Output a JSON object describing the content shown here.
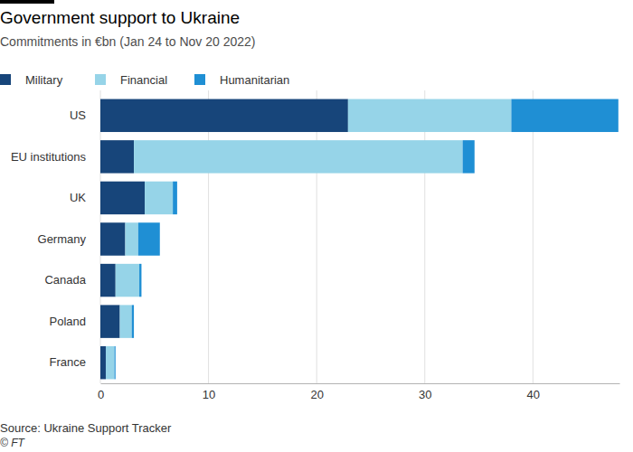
{
  "chart_data": {
    "type": "bar",
    "title": "Government support to Ukraine",
    "subtitle": "Commitments in €bn (Jan 24 to Nov 20 2022)",
    "source": "Source: Ukraine Support Tracker",
    "credit": "© FT",
    "orientation": "horizontal",
    "stacked": true,
    "grid": true,
    "legend": "top-left",
    "categories": [
      "US",
      "EU institutions",
      "UK",
      "Germany",
      "Canada",
      "Poland",
      "France"
    ],
    "series": [
      {
        "name": "Military",
        "color": "#17457a",
        "values": [
          22.9,
          3.1,
          4.1,
          2.3,
          1.4,
          1.8,
          0.5
        ]
      },
      {
        "name": "Financial",
        "color": "#96d4e8",
        "values": [
          15.1,
          30.4,
          2.6,
          1.2,
          2.2,
          1.1,
          0.8
        ]
      },
      {
        "name": "Humanitarian",
        "color": "#1f8fd4",
        "values": [
          9.9,
          1.1,
          0.4,
          2.0,
          0.2,
          0.2,
          0.1
        ]
      }
    ],
    "xlim": [
      0,
      48
    ],
    "xticks": [
      0,
      10,
      20,
      30,
      40
    ]
  }
}
